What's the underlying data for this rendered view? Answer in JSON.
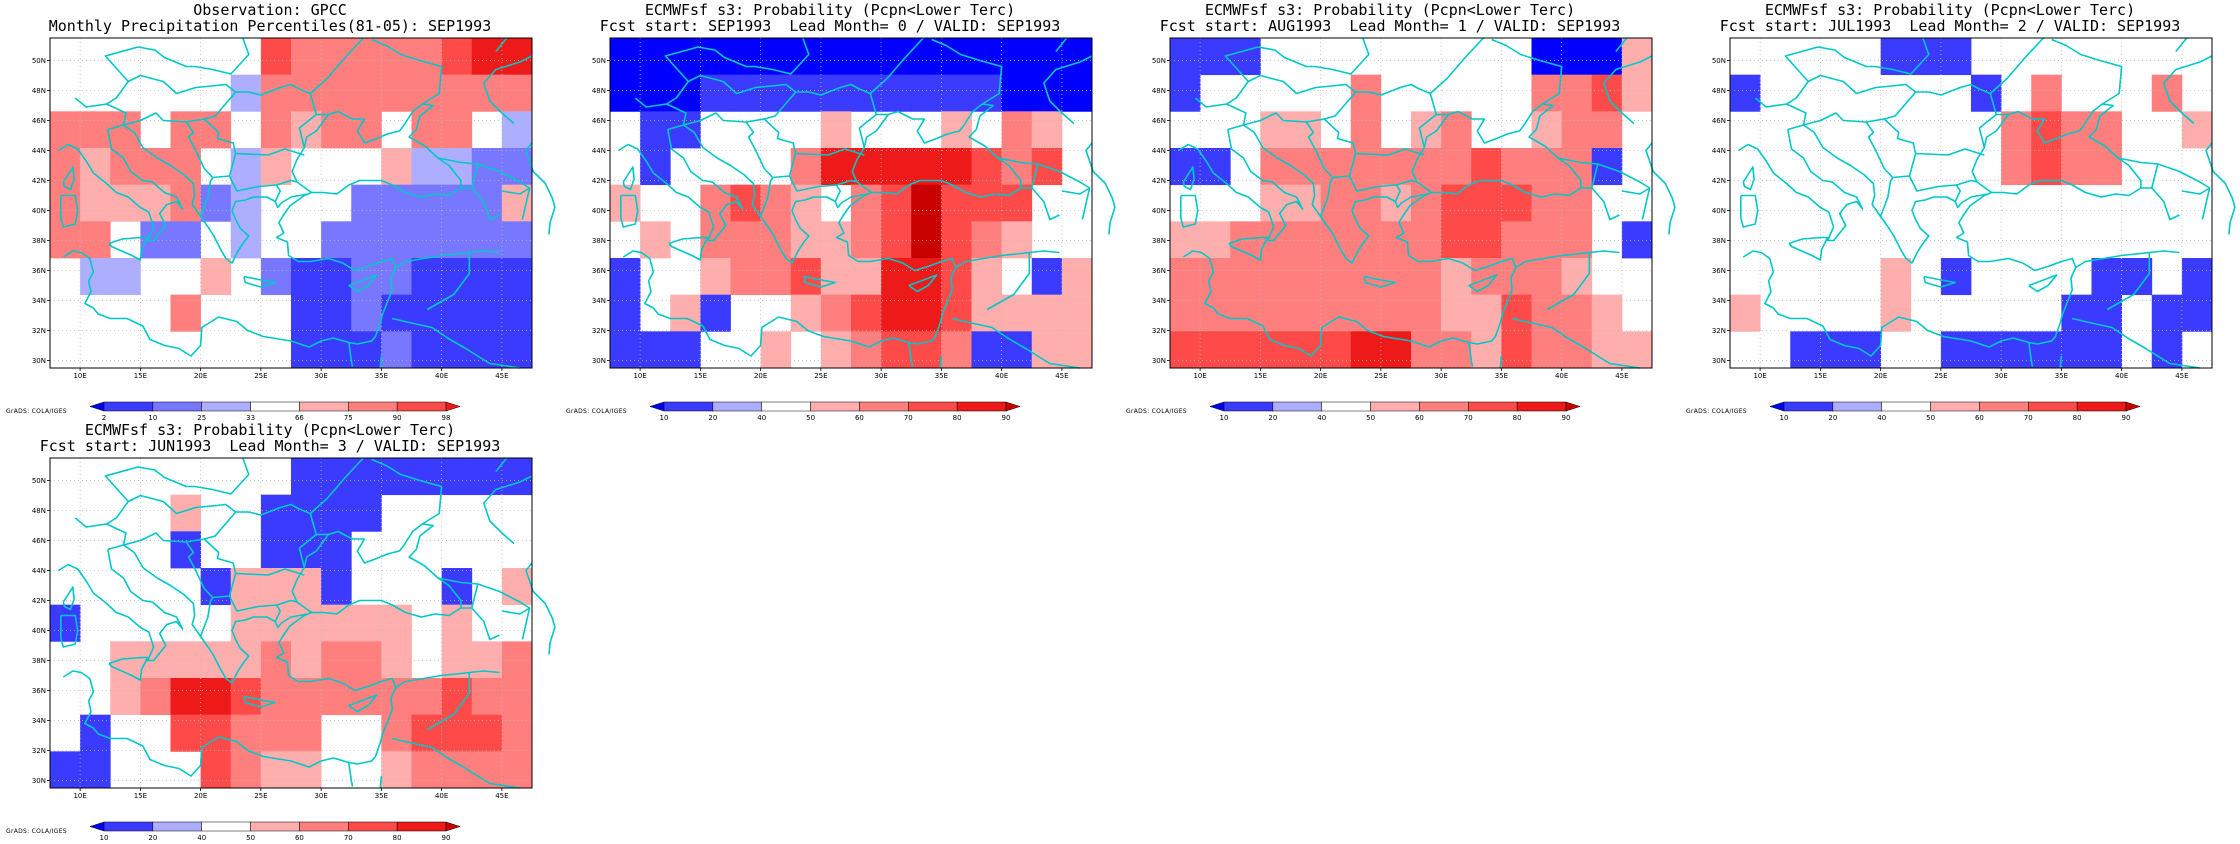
{
  "colors": {
    "b4": "#0000ff",
    "b3": "#3b3bff",
    "b2": "#7777ff",
    "b1": "#aeaeff",
    "w": "#ffffff",
    "r1": "#ffaeae",
    "r2": "#ff7f7f",
    "r3": "#ff4a4a",
    "r4": "#ee1a1a",
    "r5": "#c80000",
    "coast": "#00c8c8",
    "grid": "#bbbbbb"
  },
  "grid": {
    "lon": [
      7.5,
      47.5
    ],
    "lat": [
      29.5,
      51.5
    ],
    "cell_deg": 2.5,
    "lat_ticks": [
      "30N",
      "32N",
      "34N",
      "36N",
      "38N",
      "40N",
      "42N",
      "44N",
      "46N",
      "48N",
      "50N"
    ],
    "lat_tick_values": [
      30,
      32,
      34,
      36,
      38,
      40,
      42,
      44,
      46,
      48,
      50
    ],
    "lon_ticks": [
      "10E",
      "15E",
      "20E",
      "25E",
      "30E",
      "35E",
      "40E",
      "45E"
    ],
    "lon_tick_values": [
      10,
      15,
      20,
      25,
      30,
      35,
      40,
      45
    ]
  },
  "panels": [
    {
      "id": "obs",
      "title1": "Observation: GPCC",
      "title2": "Monthly Precipitation Percentiles(81-05): SEP1993",
      "credit": "GrADS: COLA/IGES",
      "colorbar": "obs",
      "cells": [
        "wwwwwrr3rrrrr3",
        "wwwwb1rrrrrrrr",
        "r2r2rrrrrwr2wb1",
        "r1rrrb1r1wwb1b1",
        "r2r1r1b2b1wb2bb1",
        "rrb2wb1wb2b2b1",
        "b1b1ww1bbbb",
        "wwwwr2bbbbbbb",
        "wwwwbbb2bb"
      ]
    },
    {
      "id": "lead0",
      "title1": "ECMWFsf s3: Probability (Pcpn<Lower Terc)",
      "title2": "Fcst start: SEP1993  Lead Month= 0 / VALID: SEP1993",
      "credit": "GrADS: COLA/IGES",
      "colorbar": "prob",
      "cells": []
    },
    {
      "id": "lead1",
      "title1": "ECMWFsf s3: Probability (Pcpn<Lower Terc)",
      "title2": "Fcst start: AUG1993  Lead Month= 1 / VALID: SEP1993",
      "credit": "GrADS: COLA/IGES",
      "colorbar": "prob",
      "cells": []
    },
    {
      "id": "lead2",
      "title1": "ECMWFsf s3: Probability (Pcpn<Lower Terc)",
      "title2": "Fcst start: JUL1993  Lead Month= 2 / VALID: SEP1993",
      "credit": "GrADS: COLA/IGES",
      "colorbar": "prob",
      "cells": []
    },
    {
      "id": "lead3",
      "title1": "ECMWFsf s3: Probability (Pcpn<Lower Terc)",
      "title2": "Fcst start: JUN1993  Lead Month= 3 / VALID: SEP1993",
      "credit": "GrADS: COLA/IGES",
      "colorbar": "prob",
      "cells": []
    }
  ],
  "fields": {
    "obs": [
      "w w w w w w w r3 r2 r2 r2 r2 r2 r3 r4 r4",
      "w w w w w w b1 r2 r2 r2 r2 r2 r2 r2 r2 r2",
      "r2 r2 r2 w r2 r2 w r2 r1 r2 r2 w r2 r2 w b1",
      "r2 r1 r2 r2 r2 w b1 r1 w w w r1 b1 b1 b2 b2",
      "r2 r1 r1 r1 r2 b2 b1 w w w b2 b2 b2 b2 b2 r1",
      "r2 r2 w b2 b2 w b1 w w b2 b2 b2 b2 b2 b2 b2",
      "w b1 b1 w w r1 w b2 b3 b3 b2 b2 b3 b3 b3 b3",
      "w w w w r2 w w w b3 b3 b2 b3 b3 b3 b3 b3",
      "w w w w w w w w b3 b3 b3 b2 b3 b3 b3 b3"
    ],
    "lead0": [
      "b4 b4 b4 b4 b4 b4 b4 b4 b4 b4 b4 b4 b4 b4 b4 b4",
      "b4 b4 b4 b3 b3 b3 b3 b3 b3 b3 b3 b3 b3 b4 b4 b4",
      "w b3 b3 w w w w r1 w w w r1 w r2 r1 w",
      "w b3 w w w w r2 r4 r4 r4 r4 r4 r3 r2 r3 w",
      "r1 w w r2 r3 r2 r1 w r2 r3 r5 r3 r3 r3 w w",
      "w r1 w r2 r2 r2 r1 r1 r2 r3 r5 r3 r2 r1 w w",
      "b3 w w r1 r2 r2 r3 r1 r1 r4 r4 r3 r1 w b3 r1",
      "b3 w r1 b3 w w r1 r2 r3 r4 r4 r3 r1 r1 r1 r1",
      "b3 b3 b3 w w r1 w r1 r2 r3 r3 r2 b3 b3 r1 r1"
    ],
    "lead1": [
      "b3 b3 b3 w w w w w w w w w b4 b4 b4 r1",
      "b3 w w w w w r2 w w w w w r2 r2 r3 r1",
      "w w w r1 r1 w r2 w r1 r2 w w r1 r2 r2 w",
      "b3 b3 w r2 r2 r2 r2 r2 r2 r2 r3 r2 r2 r2 b3 w",
      "w w w r1 r1 r2 r2 r1 r2 r3 r3 r3 r2 r2 w w",
      "r1 r1 r2 r2 r2 r2 r2 r2 r2 r3 r3 r2 r2 r2 w b3",
      "r2 r2 r2 r2 r2 r2 r2 r2 r2 r1 r2 r2 r2 r1 w w",
      "r2 r2 r2 r2 r2 r2 r2 r2 r2 r1 r1 r3 r2 r2 r1 w",
      "r3 r3 r3 r3 r3 r3 r4 r4 r2 r2 r1 r3 r2 r2 r1 r1"
    ],
    "lead2": [
      "w w w w w b3 b3 b3 w w w w w w w w",
      "b3 w w w w w w w b3 w r2 w w w r2 w",
      "w w w w w w w w w r2 r3 r2 r2 w w r1",
      "w w w w w w w w w r2 r3 r2 r2 w w w",
      "w w w w w w w w w w w w w w w w",
      "w w w w w w w w w w w w w w w w",
      "w w w w w r1 w b3 w w w w b3 b3 w b3",
      "r1 w w w w r1 w w w w w b3 b3 w b3 b3",
      "w w b3 b3 b3 w w b3 b3 b3 b3 b3 b3 w b3 w"
    ],
    "lead3": [
      "w w w w w w w w b3 b3 b3 b3 b3 b3 b3 b3",
      "w w w w r1 w w b3 b3 b3 b3 w w w w w",
      "w w w w b3 w w b3 b3 b3 w w w w w w",
      "w w w w w b3 r1 r1 r1 b3 w w w b3 w r1",
      "b3 w w w w w r1 r1 r1 r1 r1 r1 w r1 w w",
      "w w r1 r1 r1 r1 r1 r2 r1 r2 r2 r1 w r1 r1 r2",
      "w w r1 r2 r4 r4 r3 r2 r2 r2 r2 r2 r2 r3 r2 r2",
      "w b3 w w r3 r3 r2 r2 r2 w w r2 r3 r3 r3 r2",
      "b3 b3 w w w r3 r2 r1 r1 w w r1 r2 r2 r2 r2"
    ]
  },
  "colorbars": {
    "obs": {
      "labels": [
        "2",
        "10",
        "25",
        "33",
        "66",
        "75",
        "90",
        "98"
      ],
      "colors": [
        "b4",
        "b3",
        "b2",
        "b1",
        "w",
        "r1",
        "r2",
        "r3",
        "r4"
      ]
    },
    "prob": {
      "labels": [
        "10",
        "20",
        "40",
        "50",
        "60",
        "70",
        "80",
        "90"
      ],
      "colors": [
        "b4",
        "b3",
        "b1",
        "w",
        "r1",
        "r2",
        "r3",
        "r4",
        "r5"
      ]
    }
  },
  "positions_note": ""
}
